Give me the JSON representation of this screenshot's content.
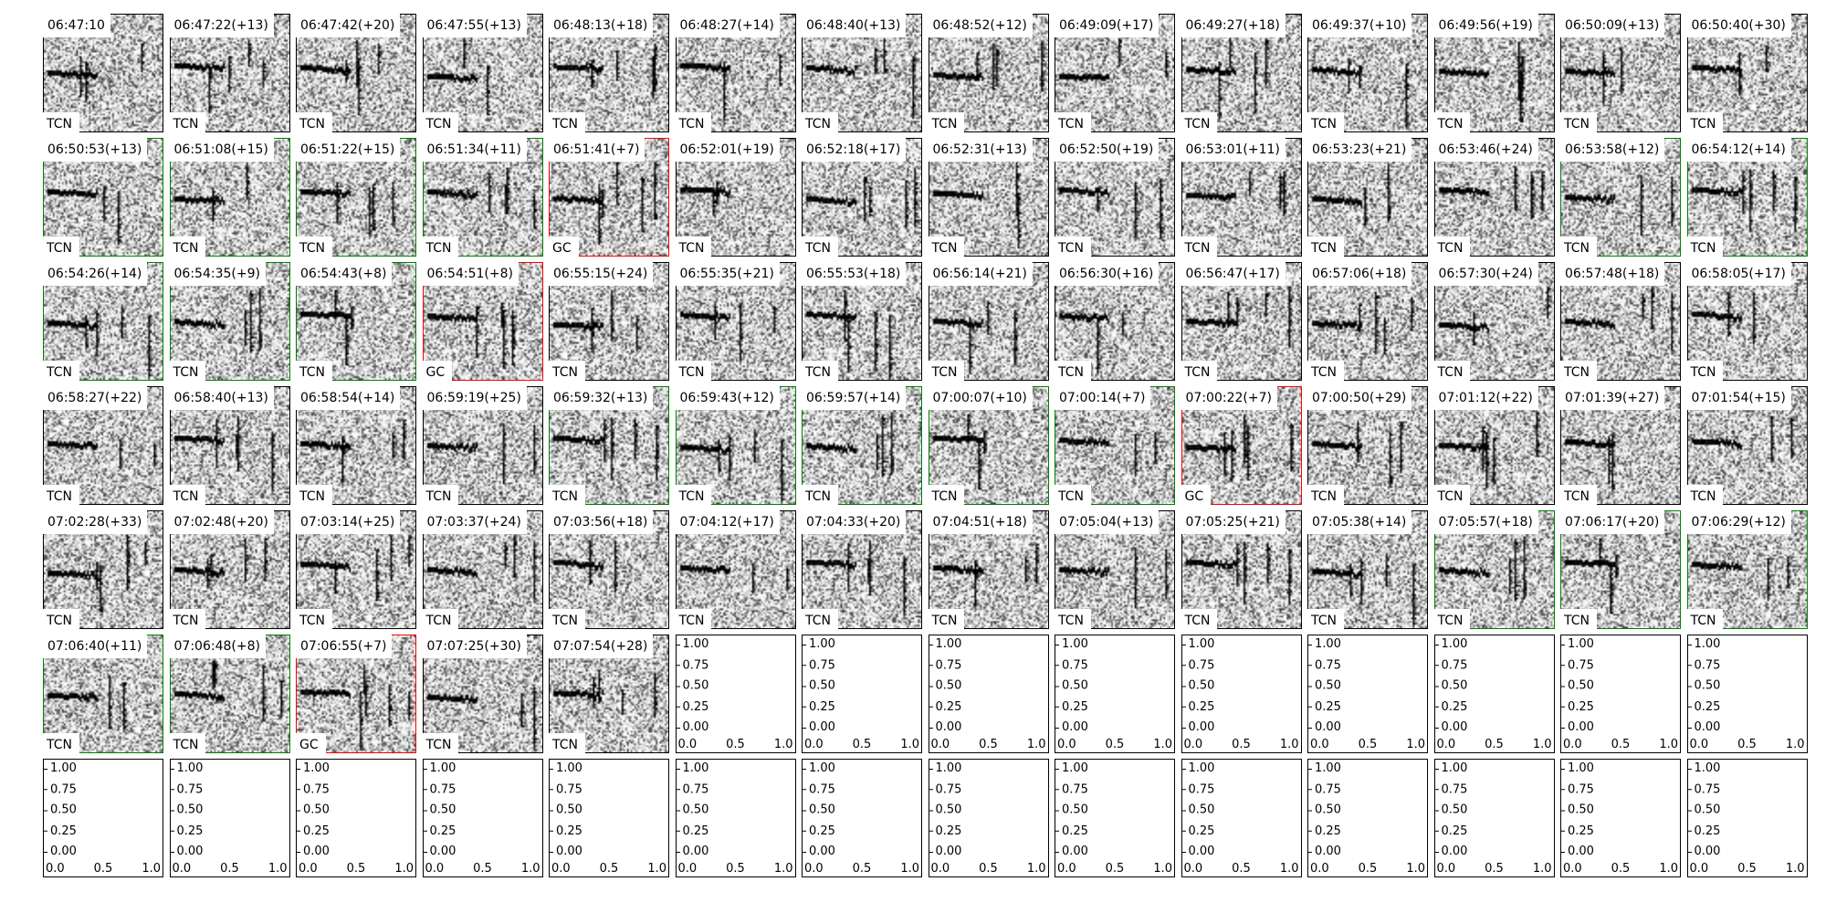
{
  "chart_data": {
    "type": "heatmap",
    "description_of_grid": "spectrogram thumbnails",
    "border_colors": {
      "black": "#000000",
      "green": "#008000",
      "red": "#ff0000"
    },
    "panels": [
      {
        "title": "06:47:10",
        "label": "TCN",
        "border": "black"
      },
      {
        "title": "06:47:22(+13)",
        "label": "TCN",
        "border": "black"
      },
      {
        "title": "06:47:42(+20)",
        "label": "TCN",
        "border": "black"
      },
      {
        "title": "06:47:55(+13)",
        "label": "TCN",
        "border": "black"
      },
      {
        "title": "06:48:13(+18)",
        "label": "TCN",
        "border": "black"
      },
      {
        "title": "06:48:27(+14)",
        "label": "TCN",
        "border": "black"
      },
      {
        "title": "06:48:40(+13)",
        "label": "TCN",
        "border": "black"
      },
      {
        "title": "06:48:52(+12)",
        "label": "TCN",
        "border": "black"
      },
      {
        "title": "06:49:09(+17)",
        "label": "TCN",
        "border": "black"
      },
      {
        "title": "06:49:27(+18)",
        "label": "TCN",
        "border": "black"
      },
      {
        "title": "06:49:37(+10)",
        "label": "TCN",
        "border": "black"
      },
      {
        "title": "06:49:56(+19)",
        "label": "TCN",
        "border": "black"
      },
      {
        "title": "06:50:09(+13)",
        "label": "TCN",
        "border": "black"
      },
      {
        "title": "06:50:40(+30)",
        "label": "TCN",
        "border": "black"
      },
      {
        "title": "06:50:53(+13)",
        "label": "TCN",
        "border": "green"
      },
      {
        "title": "06:51:08(+15)",
        "label": "TCN",
        "border": "green"
      },
      {
        "title": "06:51:22(+15)",
        "label": "TCN",
        "border": "green"
      },
      {
        "title": "06:51:34(+11)",
        "label": "TCN",
        "border": "green"
      },
      {
        "title": "06:51:41(+7)",
        "label": "GC",
        "border": "red"
      },
      {
        "title": "06:52:01(+19)",
        "label": "TCN",
        "border": "black"
      },
      {
        "title": "06:52:18(+17)",
        "label": "TCN",
        "border": "black"
      },
      {
        "title": "06:52:31(+13)",
        "label": "TCN",
        "border": "black"
      },
      {
        "title": "06:52:50(+19)",
        "label": "TCN",
        "border": "black"
      },
      {
        "title": "06:53:01(+11)",
        "label": "TCN",
        "border": "black"
      },
      {
        "title": "06:53:23(+21)",
        "label": "TCN",
        "border": "black"
      },
      {
        "title": "06:53:46(+24)",
        "label": "TCN",
        "border": "black"
      },
      {
        "title": "06:53:58(+12)",
        "label": "TCN",
        "border": "green"
      },
      {
        "title": "06:54:12(+14)",
        "label": "TCN",
        "border": "green"
      },
      {
        "title": "06:54:26(+14)",
        "label": "TCN",
        "border": "green"
      },
      {
        "title": "06:54:35(+9)",
        "label": "TCN",
        "border": "green"
      },
      {
        "title": "06:54:43(+8)",
        "label": "TCN",
        "border": "green"
      },
      {
        "title": "06:54:51(+8)",
        "label": "GC",
        "border": "red"
      },
      {
        "title": "06:55:15(+24)",
        "label": "TCN",
        "border": "black"
      },
      {
        "title": "06:55:35(+21)",
        "label": "TCN",
        "border": "black"
      },
      {
        "title": "06:55:53(+18)",
        "label": "TCN",
        "border": "black"
      },
      {
        "title": "06:56:14(+21)",
        "label": "TCN",
        "border": "black"
      },
      {
        "title": "06:56:30(+16)",
        "label": "TCN",
        "border": "black"
      },
      {
        "title": "06:56:47(+17)",
        "label": "TCN",
        "border": "black"
      },
      {
        "title": "06:57:06(+18)",
        "label": "TCN",
        "border": "black"
      },
      {
        "title": "06:57:30(+24)",
        "label": "TCN",
        "border": "black"
      },
      {
        "title": "06:57:48(+18)",
        "label": "TCN",
        "border": "black"
      },
      {
        "title": "06:58:05(+17)",
        "label": "TCN",
        "border": "black"
      },
      {
        "title": "06:58:27(+22)",
        "label": "TCN",
        "border": "black"
      },
      {
        "title": "06:58:40(+13)",
        "label": "TCN",
        "border": "black"
      },
      {
        "title": "06:58:54(+14)",
        "label": "TCN",
        "border": "black"
      },
      {
        "title": "06:59:19(+25)",
        "label": "TCN",
        "border": "black"
      },
      {
        "title": "06:59:32(+13)",
        "label": "TCN",
        "border": "green"
      },
      {
        "title": "06:59:43(+12)",
        "label": "TCN",
        "border": "green"
      },
      {
        "title": "06:59:57(+14)",
        "label": "TCN",
        "border": "green"
      },
      {
        "title": "07:00:07(+10)",
        "label": "TCN",
        "border": "green"
      },
      {
        "title": "07:00:14(+7)",
        "label": "TCN",
        "border": "green"
      },
      {
        "title": "07:00:22(+7)",
        "label": "GC",
        "border": "red"
      },
      {
        "title": "07:00:50(+29)",
        "label": "TCN",
        "border": "black"
      },
      {
        "title": "07:01:12(+22)",
        "label": "TCN",
        "border": "black"
      },
      {
        "title": "07:01:39(+27)",
        "label": "TCN",
        "border": "black"
      },
      {
        "title": "07:01:54(+15)",
        "label": "TCN",
        "border": "black"
      },
      {
        "title": "07:02:28(+33)",
        "label": "TCN",
        "border": "black"
      },
      {
        "title": "07:02:48(+20)",
        "label": "TCN",
        "border": "black"
      },
      {
        "title": "07:03:14(+25)",
        "label": "TCN",
        "border": "black"
      },
      {
        "title": "07:03:37(+24)",
        "label": "TCN",
        "border": "black"
      },
      {
        "title": "07:03:56(+18)",
        "label": "TCN",
        "border": "black"
      },
      {
        "title": "07:04:12(+17)",
        "label": "TCN",
        "border": "black"
      },
      {
        "title": "07:04:33(+20)",
        "label": "TCN",
        "border": "black"
      },
      {
        "title": "07:04:51(+18)",
        "label": "TCN",
        "border": "black"
      },
      {
        "title": "07:05:04(+13)",
        "label": "TCN",
        "border": "black"
      },
      {
        "title": "07:05:25(+21)",
        "label": "TCN",
        "border": "black"
      },
      {
        "title": "07:05:38(+14)",
        "label": "TCN",
        "border": "black"
      },
      {
        "title": "07:05:57(+18)",
        "label": "TCN",
        "border": "green"
      },
      {
        "title": "07:06:17(+20)",
        "label": "TCN",
        "border": "green"
      },
      {
        "title": "07:06:29(+12)",
        "label": "TCN",
        "border": "green"
      },
      {
        "title": "07:06:40(+11)",
        "label": "TCN",
        "border": "green"
      },
      {
        "title": "07:06:48(+8)",
        "label": "TCN",
        "border": "green"
      },
      {
        "title": "07:06:55(+7)",
        "label": "GC",
        "border": "red"
      },
      {
        "title": "07:07:25(+30)",
        "label": "TCN",
        "border": "black"
      },
      {
        "title": "07:07:54(+28)",
        "label": "TCN",
        "border": "black"
      }
    ],
    "empty_axes": {
      "count": 23,
      "xlim": [
        0,
        1
      ],
      "ylim": [
        0,
        1
      ],
      "xticks": [
        "0.0",
        "0.5",
        "1.0"
      ],
      "yticks": [
        "0.00",
        "0.25",
        "0.50",
        "0.75",
        "1.00"
      ]
    }
  }
}
